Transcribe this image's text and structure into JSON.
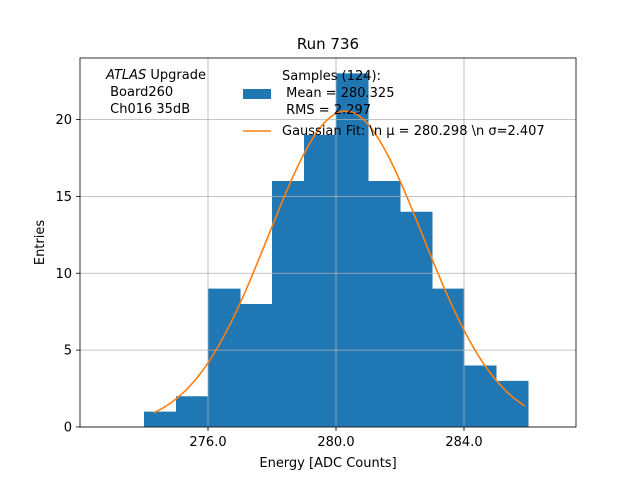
{
  "chart_data": {
    "type": "bar",
    "title": "Run 736",
    "xlabel": "Energy [ADC Counts]",
    "ylabel": "Entries",
    "xlim": [
      272.0,
      287.5
    ],
    "ylim": [
      0,
      24
    ],
    "xticks": [
      276.0,
      280.0,
      284.0
    ],
    "xtick_labels": [
      "276.0",
      "280.0",
      "284.0"
    ],
    "yticks": [
      0,
      5,
      10,
      15,
      20
    ],
    "ytick_labels": [
      "0",
      "5",
      "10",
      "15",
      "20"
    ],
    "grid": true,
    "bins": [
      {
        "x0": 274,
        "x1": 275,
        "count": 1
      },
      {
        "x0": 275,
        "x1": 276,
        "count": 2
      },
      {
        "x0": 276,
        "x1": 277,
        "count": 9
      },
      {
        "x0": 277,
        "x1": 278,
        "count": 8
      },
      {
        "x0": 278,
        "x1": 279,
        "count": 16
      },
      {
        "x0": 279,
        "x1": 280,
        "count": 19
      },
      {
        "x0": 280,
        "x1": 281,
        "count": 23
      },
      {
        "x0": 281,
        "x1": 282,
        "count": 16
      },
      {
        "x0": 282,
        "x1": 283,
        "count": 14
      },
      {
        "x0": 283,
        "x1": 284,
        "count": 9
      },
      {
        "x0": 284,
        "x1": 285,
        "count": 4
      },
      {
        "x0": 285,
        "x1": 286,
        "count": 3
      }
    ],
    "fit": {
      "type": "gaussian",
      "mu": 280.298,
      "sigma": 2.407,
      "x_range": [
        274.3,
        285.9
      ]
    },
    "annotation": {
      "line1_italic": "ATLAS",
      "line1_rest": " Upgrade",
      "line2": " Board260",
      "line3": " Ch016 35dB"
    },
    "legend": {
      "placement": "top-right",
      "hist_label_lines": [
        "Samples (124):",
        " Mean = 280.325",
        " RMS = 2.297"
      ],
      "fit_label": "Gaussian Fit: \\n μ = 280.298 \\n σ=2.407"
    },
    "colors": {
      "bars": "#1f77b4",
      "fit": "#ff7f0e",
      "grid": "#b0b0b0"
    }
  }
}
